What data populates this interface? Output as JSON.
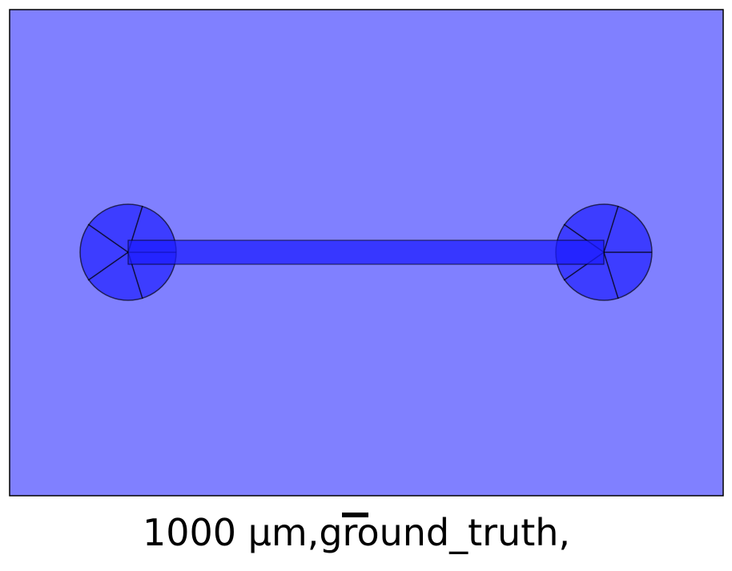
{
  "figure": {
    "caption": "1000 µm,ground_truth,"
  },
  "colors": {
    "background": "#8080ff",
    "channel": "#2020ff",
    "ports": "#3d3dff",
    "outline": "#000000"
  },
  "chart_data": {
    "type": "diagram",
    "shapes": [
      {
        "kind": "rectangle",
        "role": "domain",
        "color": "#8080ff"
      },
      {
        "kind": "rectangle",
        "role": "channel",
        "color": "#2020ff"
      },
      {
        "kind": "circle",
        "role": "port",
        "side": "left",
        "segments": 5,
        "color": "#3d3dff"
      },
      {
        "kind": "circle",
        "role": "port",
        "side": "right",
        "segments": 5,
        "color": "#3d3dff"
      }
    ],
    "scale_bar": {
      "label": "1000 µm"
    }
  }
}
